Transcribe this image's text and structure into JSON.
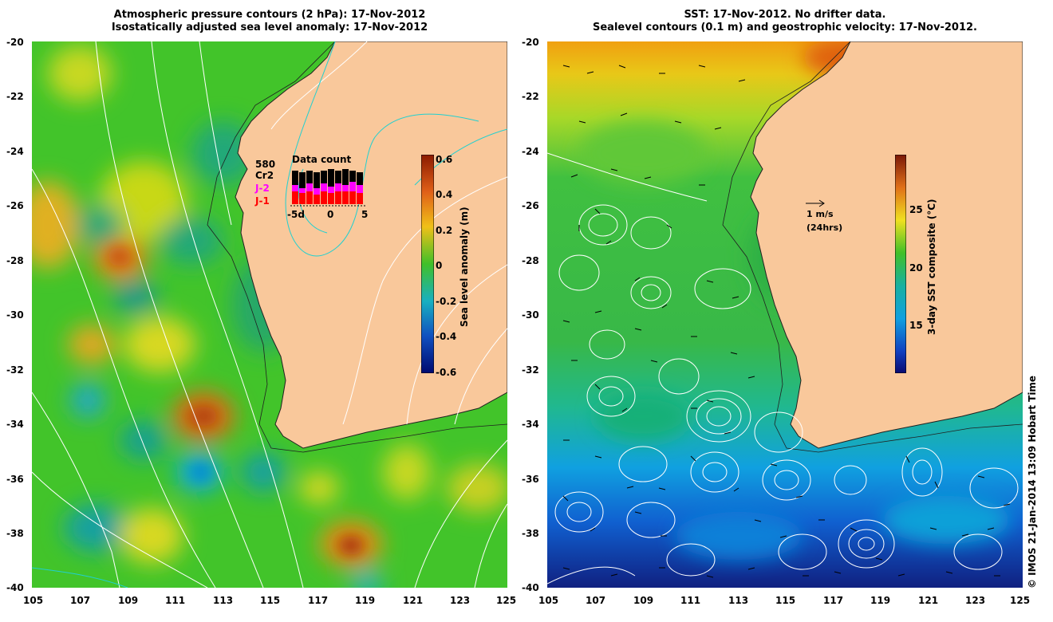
{
  "left_panel": {
    "title_line1": "Atmospheric pressure contours (2 hPa): 17-Nov-2012",
    "title_line2": "Isostatically adjusted sea level anomaly: 17-Nov-2012",
    "y_ticks": [
      "-20",
      "-22",
      "-24",
      "-26",
      "-28",
      "-30",
      "-32",
      "-34",
      "-36",
      "-38",
      "-40"
    ],
    "x_ticks": [
      "105",
      "107",
      "109",
      "111",
      "113",
      "115",
      "117",
      "119",
      "121",
      "123",
      "125"
    ],
    "colorbar": {
      "label": "Sea level anomaly (m)",
      "ticks": [
        "0.6",
        "0.4",
        "0.2",
        "0",
        "-0.2",
        "-0.4",
        "-0.6"
      ]
    },
    "data_count": {
      "title": "Data count",
      "total": "580",
      "sat_cr2": "Cr2",
      "sat_j2": "J-2",
      "sat_j1": "J-1",
      "x_left": "-5d",
      "x_mid": "0",
      "x_right": "5",
      "colors": {
        "j1": "#ff0000",
        "j2": "#ff00ff",
        "cr2": "#000000"
      }
    }
  },
  "right_panel": {
    "title_line1": "SST: 17-Nov-2012. No drifter data.",
    "title_line2": "Sealevel contours (0.1 m) and geostrophic velocity: 17-Nov-2012.",
    "y_ticks": [
      "-20",
      "-22",
      "-24",
      "-26",
      "-28",
      "-30",
      "-32",
      "-34",
      "-36",
      "-38",
      "-40"
    ],
    "x_ticks": [
      "105",
      "107",
      "109",
      "111",
      "113",
      "115",
      "117",
      "119",
      "121",
      "123",
      "125"
    ],
    "colorbar": {
      "label": "3-day SST composite (°C)",
      "ticks": [
        "25",
        "20",
        "15"
      ]
    },
    "velocity_scale": {
      "speed": "1 m/s",
      "period": "(24hrs)"
    }
  },
  "credit": "© IMOS 21-Jan-2014 13:09 Hobart Time",
  "colors": {
    "land": "#f9c89b",
    "coast": "#202020",
    "contour": "#ffffff",
    "cyan_contour": "#20d0d0"
  }
}
